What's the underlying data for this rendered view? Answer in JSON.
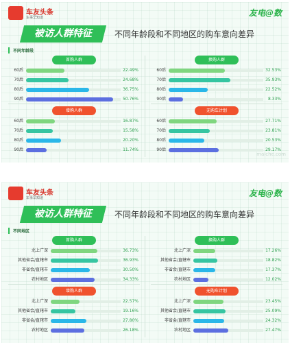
{
  "brand": {
    "name": "车友头条",
    "sub": "车事早知道",
    "badge": "友电@数"
  },
  "heading": {
    "banner": "被访人群特征",
    "subtitle": "不同年龄段和不同地区的购车意向差异"
  },
  "watermark": "maiche.com",
  "colors": {
    "green": "#2fbf58",
    "red": "#f0522e"
  },
  "bar_colors": [
    "#7fd67f",
    "#36c5a1",
    "#2ab7e8",
    "#5c6fe0"
  ],
  "slides": [
    {
      "tag": "不同年龄段",
      "panels": [
        {
          "title": "首购人群",
          "tone": "green",
          "rows": [
            {
              "label": "60后",
              "value": "22.49%",
              "v": 22.49
            },
            {
              "label": "70后",
              "value": "24.68%",
              "v": 24.68
            },
            {
              "label": "80后",
              "value": "36.75%",
              "v": 36.75
            },
            {
              "label": "90后",
              "value": "50.76%",
              "v": 50.76
            }
          ]
        },
        {
          "title": "换购人群",
          "tone": "green",
          "rows": [
            {
              "label": "60后",
              "value": "32.53%",
              "v": 32.53
            },
            {
              "label": "70后",
              "value": "35.93%",
              "v": 35.93
            },
            {
              "label": "80后",
              "value": "22.52%",
              "v": 22.52
            },
            {
              "label": "90后",
              "value": "8.33%",
              "v": 8.33
            }
          ]
        },
        {
          "title": "增购人群",
          "tone": "red",
          "rows": [
            {
              "label": "60后",
              "value": "16.87%",
              "v": 16.87
            },
            {
              "label": "70后",
              "value": "15.58%",
              "v": 15.58
            },
            {
              "label": "80后",
              "value": "20.20%",
              "v": 20.2
            },
            {
              "label": "90后",
              "value": "11.74%",
              "v": 11.74
            }
          ]
        },
        {
          "title": "无购车计划",
          "tone": "red",
          "rows": [
            {
              "label": "60后",
              "value": "27.71%",
              "v": 27.71
            },
            {
              "label": "70后",
              "value": "23.81%",
              "v": 23.81
            },
            {
              "label": "80后",
              "value": "20.53%",
              "v": 20.53
            },
            {
              "label": "90后",
              "value": "29.17%",
              "v": 29.17
            }
          ]
        }
      ]
    },
    {
      "tag": "不同地区",
      "panels": [
        {
          "title": "首购人群",
          "tone": "green",
          "rows": [
            {
              "label": "北上广深",
              "value": "36.73%",
              "v": 36.73
            },
            {
              "label": "其他省会/直辖市",
              "value": "36.93%",
              "v": 36.93
            },
            {
              "label": "非省会/直辖市",
              "value": "30.50%",
              "v": 30.5
            },
            {
              "label": "农村地区",
              "value": "34.33%",
              "v": 34.33
            }
          ]
        },
        {
          "title": "换购人群",
          "tone": "green",
          "rows": [
            {
              "label": "北上广深",
              "value": "17.26%",
              "v": 17.26
            },
            {
              "label": "其他省会/直辖市",
              "value": "18.82%",
              "v": 18.82
            },
            {
              "label": "非省会/直辖市",
              "value": "17.37%",
              "v": 17.37
            },
            {
              "label": "农村地区",
              "value": "12.02%",
              "v": 12.02
            }
          ]
        },
        {
          "title": "增购人群",
          "tone": "red",
          "rows": [
            {
              "label": "北上广深",
              "value": "22.57%",
              "v": 22.57
            },
            {
              "label": "其他省会/直辖市",
              "value": "19.16%",
              "v": 19.16
            },
            {
              "label": "非省会/直辖市",
              "value": "27.80%",
              "v": 27.8
            },
            {
              "label": "农村地区",
              "value": "26.18%",
              "v": 26.18
            }
          ]
        },
        {
          "title": "无购车计划",
          "tone": "red",
          "rows": [
            {
              "label": "北上广深",
              "value": "23.45%",
              "v": 23.45
            },
            {
              "label": "其他省会/直辖市",
              "value": "25.09%",
              "v": 25.09
            },
            {
              "label": "非省会/直辖市",
              "value": "24.32%",
              "v": 24.32
            },
            {
              "label": "农村地区",
              "value": "27.47%",
              "v": 27.47
            }
          ]
        }
      ]
    }
  ],
  "chart_data": [
    {
      "type": "bar",
      "title": "首购人群",
      "categories": [
        "60后",
        "70后",
        "80后",
        "90后"
      ],
      "values": [
        22.49,
        24.68,
        36.75,
        50.76
      ]
    },
    {
      "type": "bar",
      "title": "换购人群",
      "categories": [
        "60后",
        "70后",
        "80后",
        "90后"
      ],
      "values": [
        32.53,
        35.93,
        22.52,
        8.33
      ]
    },
    {
      "type": "bar",
      "title": "增购人群",
      "categories": [
        "60后",
        "70后",
        "80后",
        "90后"
      ],
      "values": [
        16.87,
        15.58,
        20.2,
        11.74
      ]
    },
    {
      "type": "bar",
      "title": "无购车计划",
      "categories": [
        "60后",
        "70后",
        "80后",
        "90后"
      ],
      "values": [
        27.71,
        23.81,
        20.53,
        29.17
      ]
    },
    {
      "type": "bar",
      "title": "首购人群",
      "categories": [
        "北上广深",
        "其他省会/直辖市",
        "非省会/直辖市",
        "农村地区"
      ],
      "values": [
        36.73,
        36.93,
        30.5,
        34.33
      ]
    },
    {
      "type": "bar",
      "title": "换购人群",
      "categories": [
        "北上广深",
        "其他省会/直辖市",
        "非省会/直辖市",
        "农村地区"
      ],
      "values": [
        17.26,
        18.82,
        17.37,
        12.02
      ]
    },
    {
      "type": "bar",
      "title": "增购人群",
      "categories": [
        "北上广深",
        "其他省会/直辖市",
        "非省会/直辖市",
        "农村地区"
      ],
      "values": [
        22.57,
        19.16,
        27.8,
        26.18
      ]
    },
    {
      "type": "bar",
      "title": "无购车计划",
      "categories": [
        "北上广深",
        "其他省会/直辖市",
        "非省会/直辖市",
        "农村地区"
      ],
      "values": [
        23.45,
        25.09,
        24.32,
        27.47
      ]
    }
  ]
}
